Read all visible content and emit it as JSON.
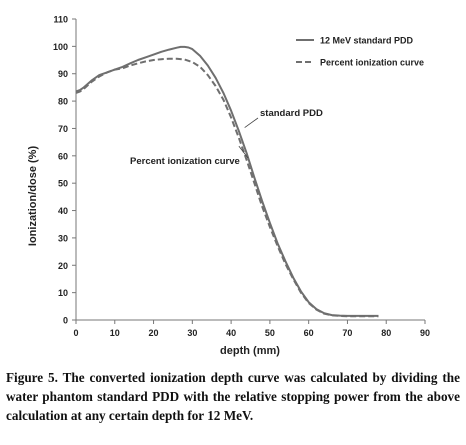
{
  "chart_data": {
    "type": "line",
    "xlabel": "depth (mm)",
    "ylabel": "Ionization/dose (%)",
    "xlim": [
      0,
      90
    ],
    "ylim": [
      0,
      110
    ],
    "xticks": [
      "0",
      "10",
      "20",
      "30",
      "40",
      "50",
      "60",
      "70",
      "80",
      "90"
    ],
    "yticks": [
      "0",
      "10",
      "20",
      "30",
      "40",
      "50",
      "60",
      "70",
      "80",
      "90",
      "100",
      "110"
    ],
    "grid": false,
    "legend_position": "top-right",
    "series": [
      {
        "name": "12 MeV standard PDD",
        "style": "solid",
        "x": [
          0,
          1,
          2,
          4,
          6,
          8,
          10,
          12,
          14,
          16,
          18,
          20,
          22,
          24,
          26,
          27,
          28,
          29,
          30,
          32,
          34,
          36,
          38,
          40,
          42,
          44,
          46,
          48,
          50,
          52,
          54,
          56,
          58,
          60,
          62,
          64,
          66,
          68,
          70,
          72,
          75,
          78
        ],
        "y": [
          83.5,
          84,
          85,
          87.5,
          89.5,
          90.5,
          91.5,
          92.5,
          93.8,
          95,
          96,
          97,
          98,
          98.8,
          99.5,
          99.8,
          99.8,
          99.6,
          99,
          96.5,
          93,
          88.5,
          83,
          76.5,
          69,
          61,
          52,
          43.5,
          35.5,
          28,
          21.5,
          15.5,
          10.5,
          6.5,
          4,
          2.5,
          1.8,
          1.6,
          1.5,
          1.5,
          1.5,
          1.5
        ]
      },
      {
        "name": "Percent ionization curve",
        "style": "dashed",
        "x": [
          0,
          1,
          2,
          4,
          6,
          8,
          10,
          12,
          14,
          16,
          18,
          20,
          22,
          24,
          26,
          28,
          30,
          32,
          34,
          36,
          38,
          40,
          42,
          44,
          46,
          48,
          50,
          52,
          54,
          56,
          58,
          60,
          62,
          64,
          66,
          68,
          70,
          72,
          75,
          78
        ],
        "y": [
          83,
          83.5,
          84.5,
          87,
          89,
          90.5,
          91.5,
          92,
          93,
          93.8,
          94.5,
          95,
          95.3,
          95.5,
          95.5,
          95.2,
          94.3,
          92.5,
          89.5,
          85.5,
          80.5,
          74,
          66.5,
          58.5,
          50,
          41.5,
          34,
          27,
          20.5,
          15,
          10,
          6.2,
          3.8,
          2.3,
          1.7,
          1.5,
          1.4,
          1.4,
          1.4,
          1.4
        ]
      }
    ],
    "annotations": [
      {
        "text": "standard PDD",
        "target_x": 43.5,
        "target_y": 63
      },
      {
        "text": "Percent ionization curve",
        "target_x": 42,
        "target_y": 65
      }
    ]
  },
  "caption": "Figure 5. The converted ionization depth curve was calculated by dividing the water phantom standard PDD with the relative stopping power from the above calculation at any certain depth for 12 MeV."
}
